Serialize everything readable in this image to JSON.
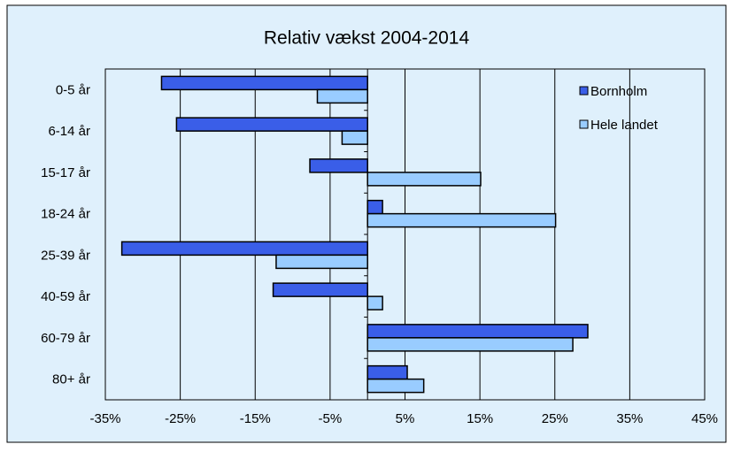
{
  "chart_data": {
    "type": "barh",
    "title": "Relativ vækst 2004-2014",
    "categories": [
      "0-5 år",
      "6-14 år",
      "15-17 år",
      "18-24 år",
      "25-39 år",
      "40-59 år",
      "60-79 år",
      "80+ år"
    ],
    "series": [
      {
        "name": "Bornholm",
        "color": "#3a5ee8",
        "values": [
          -27.5,
          -25.5,
          -7.7,
          2.0,
          -32.8,
          -12.6,
          29.4,
          5.3
        ]
      },
      {
        "name": "Hele landet",
        "color": "#99ccff",
        "values": [
          -6.7,
          -3.4,
          15.1,
          25.1,
          -12.2,
          2.0,
          27.4,
          7.5
        ]
      }
    ],
    "xlim": [
      -35,
      45
    ],
    "xticks": [
      {
        "value": -35,
        "label": "-35%"
      },
      {
        "value": -25,
        "label": "-25%"
      },
      {
        "value": -15,
        "label": "-15%"
      },
      {
        "value": -5,
        "label": "-5%"
      },
      {
        "value": 5,
        "label": "5%"
      },
      {
        "value": 15,
        "label": "15%"
      },
      {
        "value": 25,
        "label": "25%"
      },
      {
        "value": 35,
        "label": "35%"
      },
      {
        "value": 45,
        "label": "45%"
      }
    ],
    "grid": true,
    "legend": "upper right"
  }
}
